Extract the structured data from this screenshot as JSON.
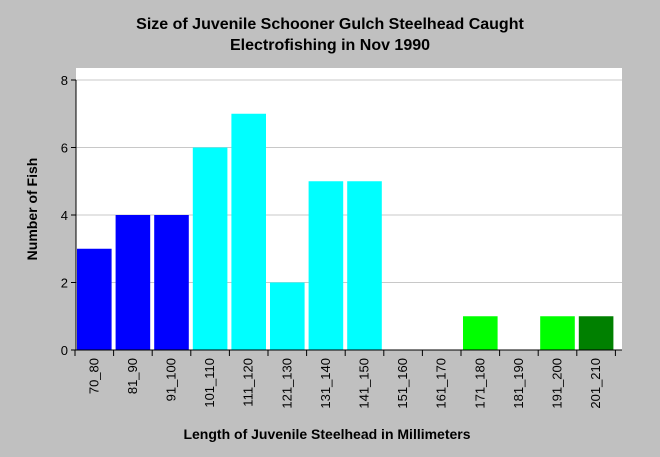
{
  "chart_data": {
    "type": "bar",
    "title_lines": [
      "Size of Juvenile Schooner Gulch Steelhead Caught",
      "Electrofishing in Nov 1990"
    ],
    "xlabel": "Length of Juvenile Steelhead in Millimeters",
    "ylabel": "Number of Fish",
    "ylim": [
      0,
      8
    ],
    "yticks": [
      0,
      2,
      4,
      6,
      8
    ],
    "grid": true,
    "legend": "none",
    "categories": [
      "70_80",
      "81_90",
      "91_100",
      "101_110",
      "111_120",
      "121_130",
      "131_140",
      "141_150",
      "151_160",
      "161_170",
      "171_180",
      "181_190",
      "191_200",
      "201_210"
    ],
    "values": [
      3,
      4,
      4,
      6,
      7,
      2,
      5,
      5,
      0,
      0,
      1,
      0,
      1,
      1
    ],
    "bar_colors": [
      "#0000ff",
      "#0000ff",
      "#0000ff",
      "#00ffff",
      "#00ffff",
      "#00ffff",
      "#00ffff",
      "#00ffff",
      "#00ffff",
      "#00ffff",
      "#00ff00",
      "#00ff00",
      "#00ff00",
      "#008000"
    ]
  }
}
